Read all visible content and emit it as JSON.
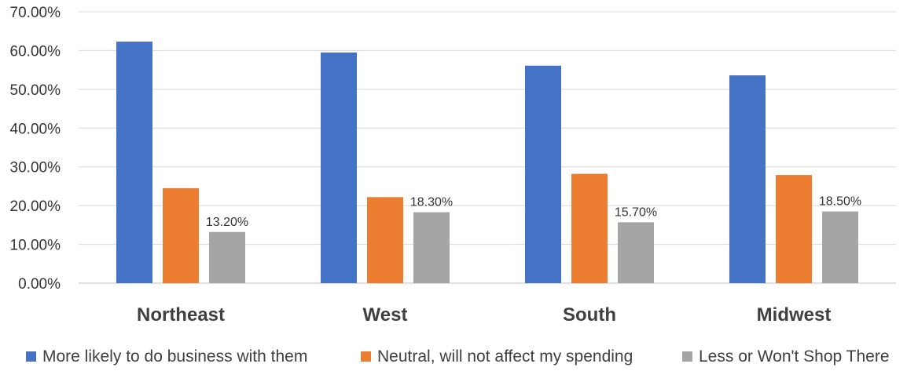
{
  "chart_data": {
    "type": "bar",
    "categories": [
      "Northeast",
      "West",
      "South",
      "Midwest"
    ],
    "series": [
      {
        "name": "More likely to do business with them",
        "color": "#4472C4",
        "values": [
          62.3,
          59.5,
          56.1,
          53.6
        ],
        "labels": [
          "",
          "",
          "",
          ""
        ]
      },
      {
        "name": "Neutral, will not affect my spending",
        "color": "#ED7D31",
        "values": [
          24.5,
          22.2,
          28.2,
          27.9
        ],
        "labels": [
          "",
          "",
          "",
          ""
        ]
      },
      {
        "name": "Less or Won't Shop There",
        "color": "#A5A5A5",
        "values": [
          13.2,
          18.3,
          15.7,
          18.5
        ],
        "labels": [
          "13.20%",
          "18.30%",
          "15.70%",
          "18.50%"
        ]
      }
    ],
    "y_ticks": [
      "0.00%",
      "10.00%",
      "20.00%",
      "30.00%",
      "40.00%",
      "50.00%",
      "60.00%",
      "70.00%"
    ],
    "ylim": [
      0,
      70
    ],
    "grid": true,
    "legend_position": "bottom",
    "title": "",
    "xlabel": "",
    "ylabel": ""
  }
}
